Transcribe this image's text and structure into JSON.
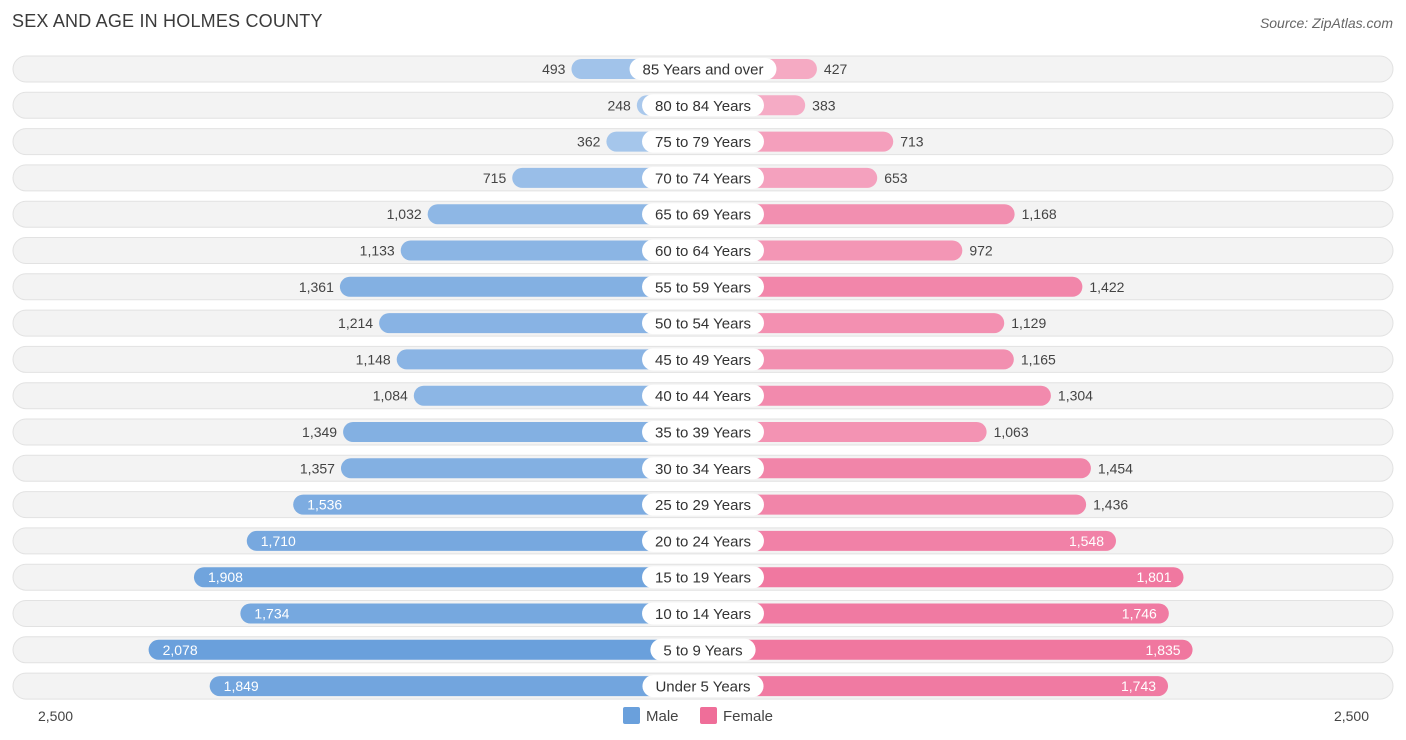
{
  "title": "SEX AND AGE IN HOLMES COUNTY",
  "source": "Source: ZipAtlas.com",
  "colors": {
    "male_light": "#a9c8ec",
    "male_dark": "#6aa0dc",
    "female_light": "#f6b0c8",
    "female_dark": "#ef6e99",
    "row_bg": "#f2f2f2"
  },
  "chart_data": {
    "type": "bar",
    "orientation": "horizontal-diverging",
    "categories": [
      "85 Years and over",
      "80 to 84 Years",
      "75 to 79 Years",
      "70 to 74 Years",
      "65 to 69 Years",
      "60 to 64 Years",
      "55 to 59 Years",
      "50 to 54 Years",
      "45 to 49 Years",
      "40 to 44 Years",
      "35 to 39 Years",
      "30 to 34 Years",
      "25 to 29 Years",
      "20 to 24 Years",
      "15 to 19 Years",
      "10 to 14 Years",
      "5 to 9 Years",
      "Under 5 Years"
    ],
    "series": [
      {
        "name": "Male",
        "values": [
          493,
          248,
          362,
          715,
          1032,
          1133,
          1361,
          1214,
          1148,
          1084,
          1349,
          1357,
          1536,
          1710,
          1908,
          1734,
          2078,
          1849
        ],
        "labels": [
          "493",
          "248",
          "362",
          "715",
          "1,032",
          "1,133",
          "1,361",
          "1,214",
          "1,148",
          "1,084",
          "1,349",
          "1,357",
          "1,536",
          "1,710",
          "1,908",
          "1,734",
          "2,078",
          "1,849"
        ]
      },
      {
        "name": "Female",
        "values": [
          427,
          383,
          713,
          653,
          1168,
          972,
          1422,
          1129,
          1165,
          1304,
          1063,
          1454,
          1436,
          1548,
          1801,
          1746,
          1835,
          1743
        ],
        "labels": [
          "427",
          "383",
          "713",
          "653",
          "1,168",
          "972",
          "1,422",
          "1,129",
          "1,165",
          "1,304",
          "1,063",
          "1,454",
          "1,436",
          "1,548",
          "1,801",
          "1,746",
          "1,835",
          "1,743"
        ]
      }
    ],
    "xlim": [
      -2500,
      2500
    ],
    "axis_labels": {
      "left": "2,500",
      "right": "2,500"
    },
    "legend": "bottom-center",
    "grid": false
  }
}
